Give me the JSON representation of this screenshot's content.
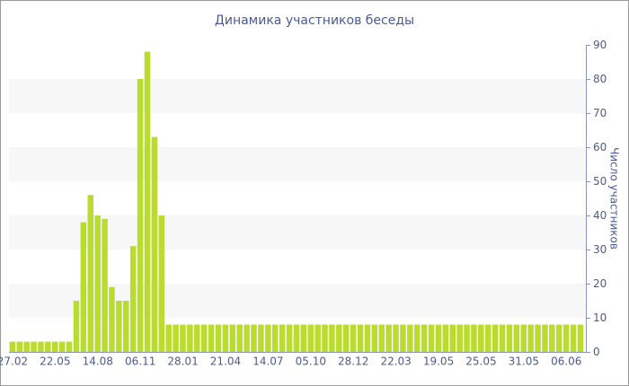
{
  "chart_data": {
    "type": "bar",
    "title": "Динамика участников беседы",
    "y_axis_label": "Число участников",
    "categories": [
      "27.02",
      null,
      null,
      null,
      null,
      null,
      "22.05",
      null,
      null,
      null,
      null,
      null,
      "14.08",
      null,
      null,
      null,
      null,
      null,
      "06.11",
      null,
      null,
      null,
      null,
      null,
      "28.01",
      null,
      null,
      null,
      null,
      null,
      "21.04",
      null,
      null,
      null,
      null,
      null,
      "14.07",
      null,
      null,
      null,
      null,
      null,
      "05.10",
      null,
      null,
      null,
      null,
      null,
      "28.12",
      null,
      null,
      null,
      null,
      null,
      "22.03",
      null,
      null,
      null,
      null,
      null,
      "19.05",
      null,
      null,
      null,
      null,
      null,
      "25.05",
      null,
      null,
      null,
      null,
      null,
      "31.05",
      null,
      null,
      null,
      null,
      null,
      "06.06",
      null,
      null
    ],
    "values": [
      3,
      3,
      3,
      3,
      3,
      3,
      3,
      3,
      3,
      15,
      38,
      46,
      40,
      39,
      19,
      15,
      15,
      31,
      80,
      88,
      63,
      40,
      8,
      8,
      8,
      8,
      8,
      8,
      8,
      8,
      8,
      8,
      8,
      8,
      8,
      8,
      8,
      8,
      8,
      8,
      8,
      8,
      8,
      8,
      8,
      8,
      8,
      8,
      8,
      8,
      8,
      8,
      8,
      8,
      8,
      8,
      8,
      8,
      8,
      8,
      8,
      8,
      8,
      8,
      8,
      8,
      8,
      8,
      8,
      8,
      8,
      8,
      8,
      8,
      8,
      8,
      8,
      8,
      8,
      8,
      8
    ],
    "color": "#b9dc2f",
    "ylim": [
      0,
      90
    ],
    "yticks": [
      0,
      10,
      20,
      30,
      40,
      50,
      60,
      70,
      80,
      90
    ],
    "grid": "bands",
    "y_axis_side": "right"
  }
}
